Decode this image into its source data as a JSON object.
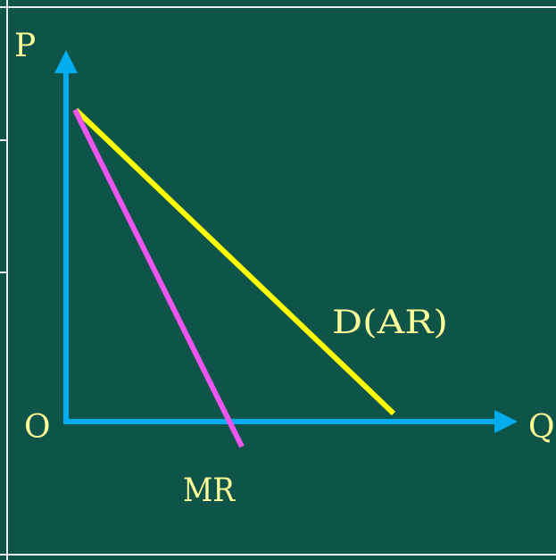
{
  "diagram": {
    "labels": {
      "price_axis": "P",
      "quantity_axis": "Q",
      "origin": "O",
      "demand_curve": "D(AR)",
      "marginal_revenue_curve": "MR"
    },
    "colors": {
      "background": "#0e5449",
      "frame": "#e8eef0",
      "axes": "#00aeef",
      "demand_curve": "#ffff00",
      "marginal_revenue_curve": "#ee55ee",
      "label_text": "#ffff99"
    }
  }
}
